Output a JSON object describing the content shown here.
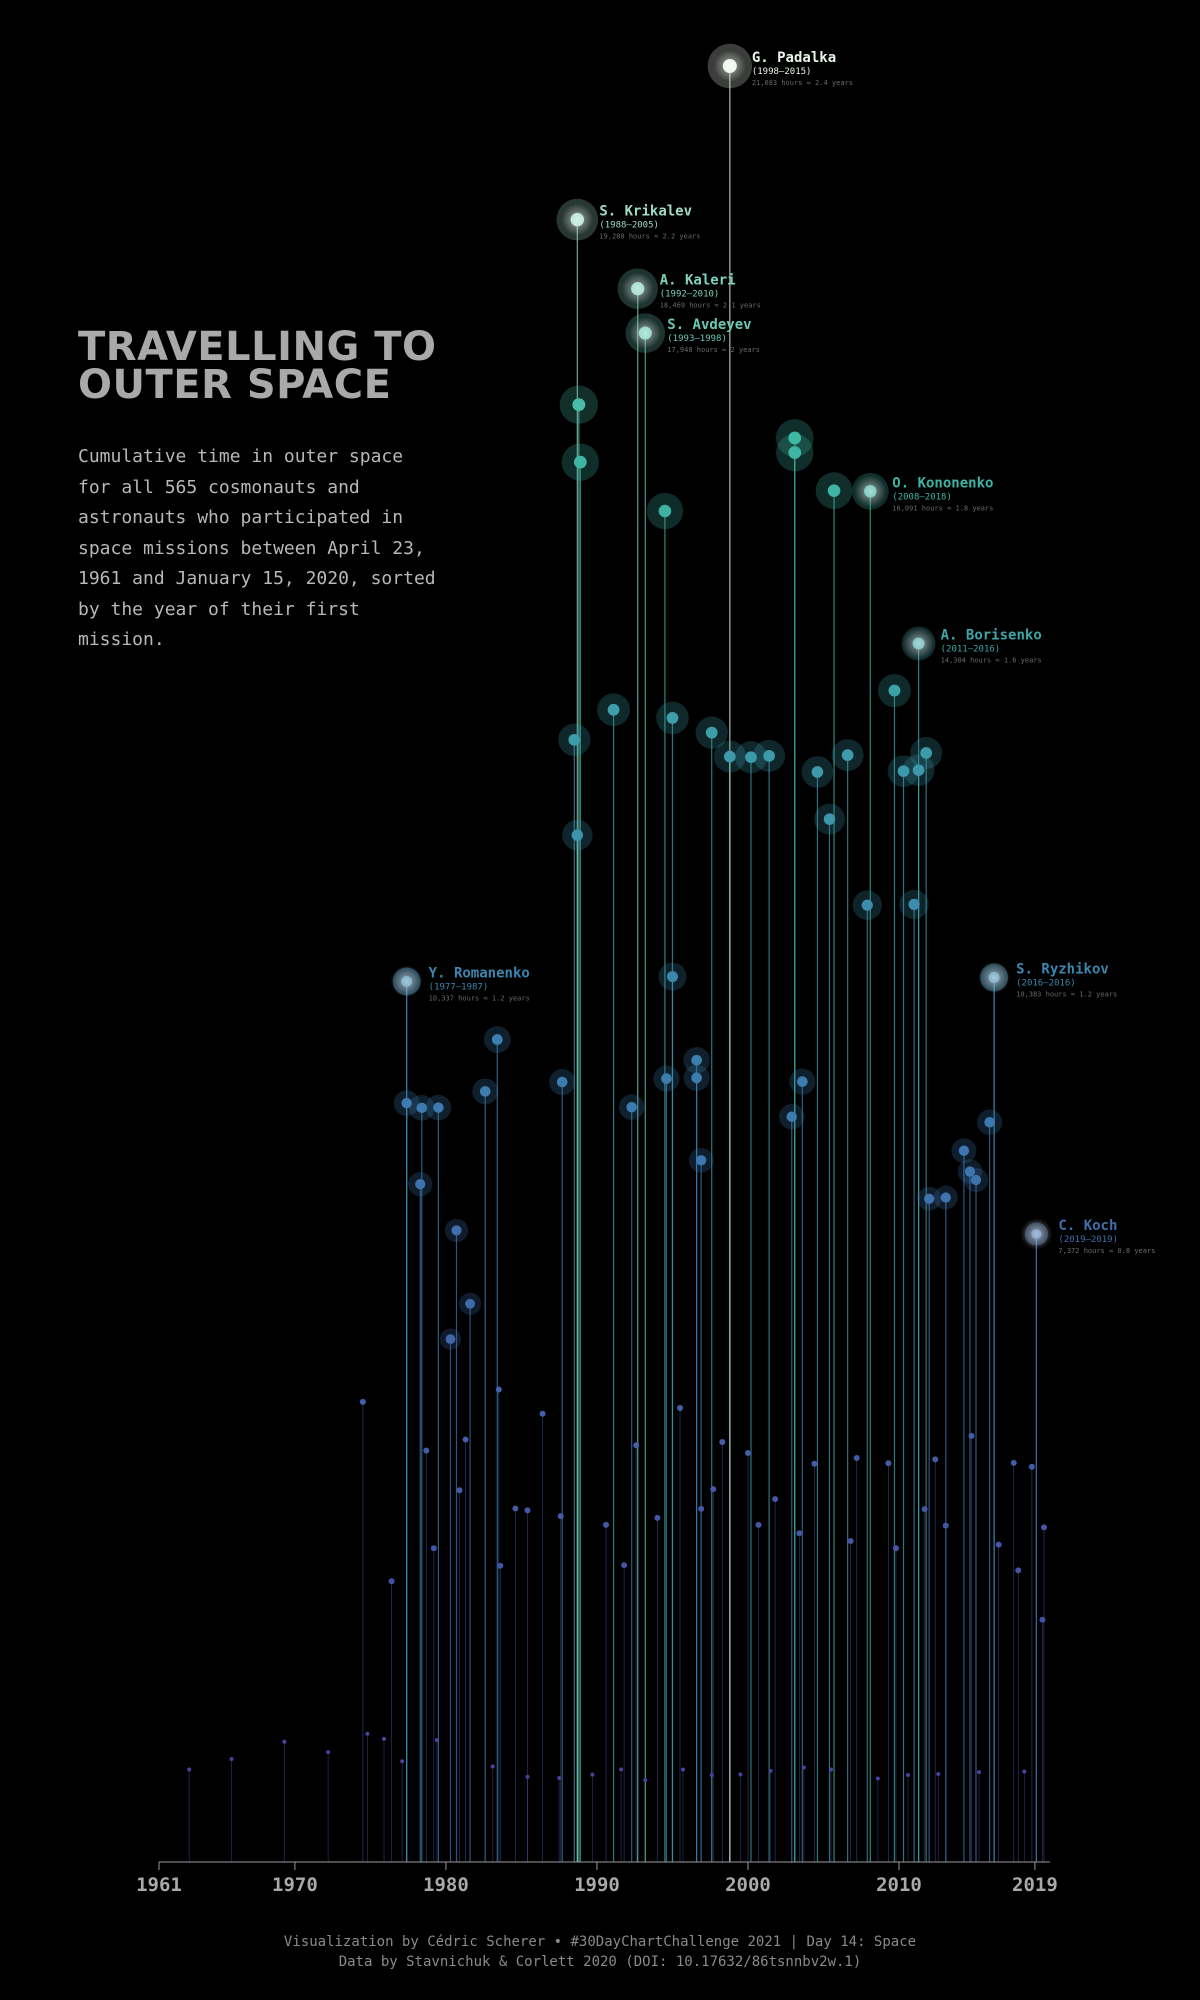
{
  "title_lines": [
    "TRAVELLING TO",
    "OUTER SPACE"
  ],
  "subtitle": "Cumulative time in outer space for all 565 cosmonauts and astronauts who participated in space missions between April 23, 1961 and January 15, 2020, sorted by the year of their first mission.",
  "caption_line1": "Visualization by Cédric Scherer  •  #30DayChartChallenge 2021 | Day 14: Space",
  "caption_line2": "Data by Stavnichuk & Corlett 2020 (DOI: 10.17632/86tsnnbv2w.1)",
  "colors": {
    "background": "#000000",
    "low": "#4b3a9e",
    "mid": "#3b7fb0",
    "high": "#3fb9a3",
    "top": "#e8f5e6",
    "axis": "#9a9a9a"
  },
  "chart_data": {
    "type": "scatter",
    "title": "TRAVELLING TO OUTER SPACE",
    "xlabel": "",
    "ylabel": "",
    "xlim": [
      1961,
      2020
    ],
    "ylim": [
      0,
      21083
    ],
    "x_ticks": [
      1961,
      1970,
      1980,
      1990,
      2000,
      2010,
      2019
    ],
    "grid": false,
    "legend": "none",
    "annotations": [
      {
        "name": "G. Padalka",
        "years": "(1998–2015)",
        "hours_text": "21,083 hours ≈ 2.4 years",
        "x": 1998.8,
        "y": 21083
      },
      {
        "name": "S. Krikalev",
        "years": "(1988–2005)",
        "hours_text": "19,280 hours ≈ 2.2 years",
        "x": 1988.7,
        "y": 19280
      },
      {
        "name": "A. Kaleri",
        "years": "(1992–2010)",
        "hours_text": "18,469 hours ≈ 2.1 years",
        "x": 1992.7,
        "y": 18469
      },
      {
        "name": "S. Avdeyev",
        "years": "(1993–1998)",
        "hours_text": "17,948 hours ≈ 2 years",
        "x": 1993.2,
        "y": 17948
      },
      {
        "name": "O. Kononenko",
        "years": "(2008–2018)",
        "hours_text": "16,091 hours ≈ 1.8 years",
        "x": 2008.1,
        "y": 16091
      },
      {
        "name": "A. Borisenko",
        "years": "(2011–2016)",
        "hours_text": "14,304 hours ≈ 1.6 years",
        "x": 2011.3,
        "y": 14304
      },
      {
        "name": "Y. Romanenko",
        "years": "(1977–1987)",
        "hours_text": "10,337 hours ≈ 1.2 years",
        "x": 1977.4,
        "y": 10337
      },
      {
        "name": "S. Ryzhikov",
        "years": "(2016–2016)",
        "hours_text": "10,383 hours ≈ 1.2 years",
        "x": 2016.3,
        "y": 10383
      },
      {
        "name": "C. Koch",
        "years": "(2019–2019)",
        "hours_text": "7,372 hours ≈ 0.8 years",
        "x": 2019.1,
        "y": 7372
      }
    ],
    "series": [
      {
        "values": [
          [
            1977.4,
            10337
          ],
          [
            1977.4,
            8908
          ],
          [
            1978.3,
            7957
          ],
          [
            1978.4,
            8853
          ],
          [
            1979.5,
            8856
          ],
          [
            1980.7,
            7414
          ],
          [
            1981.6,
            6553
          ],
          [
            1982.6,
            9046
          ],
          [
            1983.4,
            9655
          ],
          [
            1987.7,
            9156
          ],
          [
            1988.5,
            13173
          ],
          [
            1988.7,
            12054
          ],
          [
            1988.8,
            17107
          ],
          [
            1988.9,
            16433
          ],
          [
            1991.1,
            13526
          ],
          [
            1992.3,
            8860
          ],
          [
            1994.6,
            9196
          ],
          [
            1994.5,
            15859
          ],
          [
            1995.0,
            13430
          ],
          [
            1995.0,
            10394
          ],
          [
            1996.6,
            9205
          ],
          [
            1996.6,
            9412
          ],
          [
            1996.9,
            8237
          ],
          [
            1997.6,
            13257
          ],
          [
            1998.8,
            12976
          ],
          [
            2000.2,
            12969
          ],
          [
            2001.4,
            12985
          ],
          [
            2002.9,
            8749
          ],
          [
            2003.1,
            16716
          ],
          [
            2003.1,
            16544
          ],
          [
            2003.6,
            9161
          ],
          [
            2004.6,
            12796
          ],
          [
            2005.4,
            12242
          ],
          [
            2005.7,
            16098
          ],
          [
            2006.6,
            12994
          ],
          [
            2007.9,
            11232
          ],
          [
            2009.7,
            13751
          ],
          [
            2010.3,
            12805
          ],
          [
            2011.0,
            11241
          ],
          [
            2011.3,
            12817
          ],
          [
            2011.8,
            13018
          ],
          [
            2012.0,
            7786
          ],
          [
            2013.1,
            7800
          ],
          [
            2014.3,
            8350
          ],
          [
            2014.7,
            8105
          ],
          [
            2015.1,
            8006
          ],
          [
            2016.0,
            8684
          ],
          [
            2016.3,
            10383
          ],
          [
            2019.1,
            7372
          ],
          [
            1974.5,
            5402
          ],
          [
            1978.7,
            4831
          ],
          [
            1980.3,
            6138
          ],
          [
            1980.9,
            4364
          ],
          [
            1981.3,
            4960
          ],
          [
            1983.5,
            5547
          ],
          [
            1984.6,
            4150
          ],
          [
            1986.4,
            5262
          ],
          [
            1987.6,
            4060
          ],
          [
            1990.6,
            3958
          ],
          [
            1992.6,
            4892
          ],
          [
            1995.5,
            5329
          ],
          [
            1998.3,
            4931
          ],
          [
            2000.0,
            4801
          ],
          [
            2004.4,
            4675
          ],
          [
            2007.2,
            4742
          ],
          [
            2009.3,
            4681
          ],
          [
            2012.4,
            4726
          ],
          [
            2014.8,
            5002
          ],
          [
            2017.6,
            4685
          ],
          [
            2018.8,
            4640
          ],
          [
            1976.4,
            3296
          ],
          [
            1979.2,
            3683
          ],
          [
            1983.6,
            3478
          ],
          [
            1985.4,
            4127
          ],
          [
            1991.8,
            3485
          ],
          [
            1994.0,
            4040
          ],
          [
            1996.9,
            4145
          ],
          [
            2000.7,
            3958
          ],
          [
            2003.4,
            3859
          ],
          [
            2006.8,
            3768
          ],
          [
            2009.8,
            3683
          ],
          [
            2013.1,
            3948
          ],
          [
            2016.6,
            3726
          ],
          [
            2019.6,
            3928
          ],
          [
            2019.5,
            2844
          ],
          [
            2017.9,
            3424
          ],
          [
            2011.7,
            4142
          ],
          [
            2001.8,
            4260
          ],
          [
            1997.7,
            4377
          ],
          [
            1963.0,
            1086
          ],
          [
            1965.8,
            1209
          ],
          [
            1969.3,
            1412
          ],
          [
            1972.2,
            1290
          ],
          [
            1974.8,
            1506
          ],
          [
            1975.9,
            1446
          ],
          [
            1977.1,
            1182
          ],
          [
            1979.4,
            1430
          ],
          [
            1983.1,
            1121
          ],
          [
            1985.4,
            1000
          ],
          [
            1987.5,
            986
          ],
          [
            1989.7,
            1026
          ],
          [
            1991.6,
            1087
          ],
          [
            1993.2,
            960
          ],
          [
            1995.7,
            1086
          ],
          [
            1997.6,
            1020
          ],
          [
            1999.5,
            1027
          ],
          [
            2001.5,
            1070
          ],
          [
            2003.7,
            1109
          ],
          [
            2005.5,
            1086
          ],
          [
            2008.6,
            980
          ],
          [
            2010.6,
            1021
          ],
          [
            2012.6,
            1033
          ],
          [
            2015.3,
            1055
          ],
          [
            2018.3,
            1063
          ]
        ]
      }
    ]
  }
}
